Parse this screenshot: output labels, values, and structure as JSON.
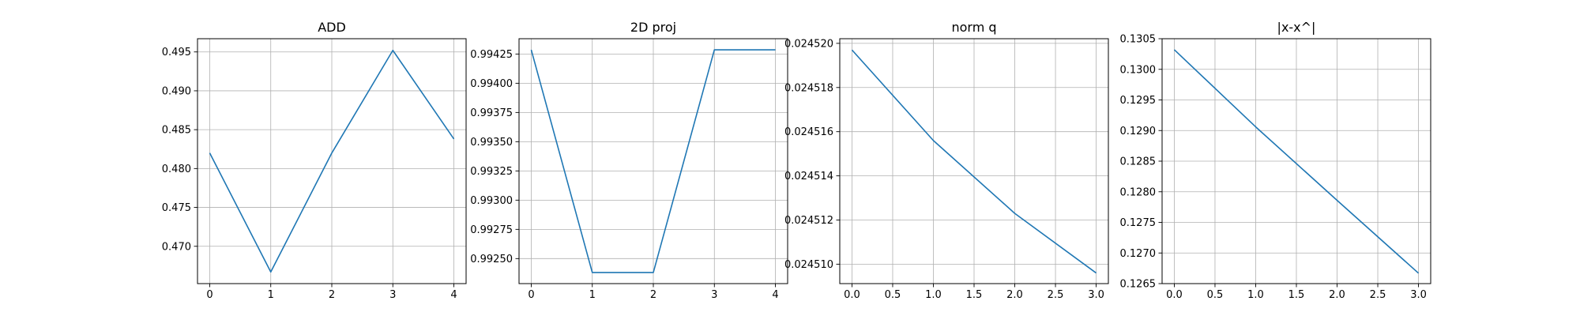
{
  "chart_data": [
    {
      "type": "line",
      "title": "ADD",
      "xlabel": "",
      "ylabel": "",
      "x": [
        0,
        1,
        2,
        3,
        4
      ],
      "series": [
        {
          "values": [
            0.482,
            0.4667,
            0.482,
            0.4952,
            0.4838
          ]
        }
      ],
      "xlim": [
        -0.2,
        4.2
      ],
      "ylim": [
        0.4652,
        0.4967
      ],
      "xticks": [
        0,
        1,
        2,
        3,
        4
      ],
      "xtick_labels": [
        "0",
        "1",
        "2",
        "3",
        "4"
      ],
      "yticks": [
        0.47,
        0.475,
        0.48,
        0.485,
        0.49,
        0.495
      ],
      "ytick_labels": [
        "0.470",
        "0.475",
        "0.480",
        "0.485",
        "0.490",
        "0.495"
      ],
      "grid": true,
      "color": "#1f77b4"
    },
    {
      "type": "line",
      "title": "2D proj",
      "xlabel": "",
      "ylabel": "",
      "x": [
        0,
        1,
        2,
        3,
        4
      ],
      "series": [
        {
          "values": [
            0.994286,
            0.992381,
            0.992381,
            0.994286,
            0.994286
          ]
        }
      ],
      "xlim": [
        -0.2,
        4.2
      ],
      "ylim": [
        0.992286,
        0.994381
      ],
      "xticks": [
        0,
        1,
        2,
        3,
        4
      ],
      "xtick_labels": [
        "0",
        "1",
        "2",
        "3",
        "4"
      ],
      "yticks": [
        0.9925,
        0.99275,
        0.993,
        0.99325,
        0.9935,
        0.99375,
        0.994,
        0.99425
      ],
      "ytick_labels": [
        "0.99250",
        "0.99275",
        "0.99300",
        "0.99325",
        "0.99350",
        "0.99375",
        "0.99400",
        "0.99425"
      ],
      "grid": true,
      "color": "#1f77b4"
    },
    {
      "type": "line",
      "title": "norm q",
      "xlabel": "",
      "ylabel": "",
      "x": [
        0,
        1,
        2,
        3
      ],
      "series": [
        {
          "values": [
            0.0245197,
            0.0245156,
            0.0245123,
            0.0245096
          ]
        }
      ],
      "xlim": [
        -0.15,
        3.15
      ],
      "ylim": [
        0.02450912,
        0.02452021
      ],
      "xticks": [
        0.0,
        0.5,
        1.0,
        1.5,
        2.0,
        2.5,
        3.0
      ],
      "xtick_labels": [
        "0.0",
        "0.5",
        "1.0",
        "1.5",
        "2.0",
        "2.5",
        "3.0"
      ],
      "yticks": [
        0.02451,
        0.024512,
        0.024514,
        0.024516,
        0.024518,
        0.02452
      ],
      "ytick_labels": [
        "0.024510",
        "0.024512",
        "0.024514",
        "0.024516",
        "0.024518",
        "0.024520"
      ],
      "grid": true,
      "color": "#1f77b4"
    },
    {
      "type": "line",
      "title": "|x-x^|",
      "xlabel": "",
      "ylabel": "",
      "x": [
        0,
        1,
        2,
        3
      ],
      "series": [
        {
          "values": [
            0.13032,
            0.12906,
            0.12786,
            0.12667
          ]
        }
      ],
      "xlim": [
        -0.15,
        3.15
      ],
      "ylim": [
        0.1265,
        0.1305
      ],
      "xticks": [
        0.0,
        0.5,
        1.0,
        1.5,
        2.0,
        2.5,
        3.0
      ],
      "xtick_labels": [
        "0.0",
        "0.5",
        "1.0",
        "1.5",
        "2.0",
        "2.5",
        "3.0"
      ],
      "yticks": [
        0.1265,
        0.127,
        0.1275,
        0.128,
        0.1285,
        0.129,
        0.1295,
        0.13,
        0.1305
      ],
      "ytick_labels": [
        "0.1265",
        "0.1270",
        "0.1275",
        "0.1280",
        "0.1285",
        "0.1290",
        "0.1295",
        "0.1300",
        "0.1305"
      ],
      "grid": true,
      "color": "#1f77b4"
    }
  ]
}
